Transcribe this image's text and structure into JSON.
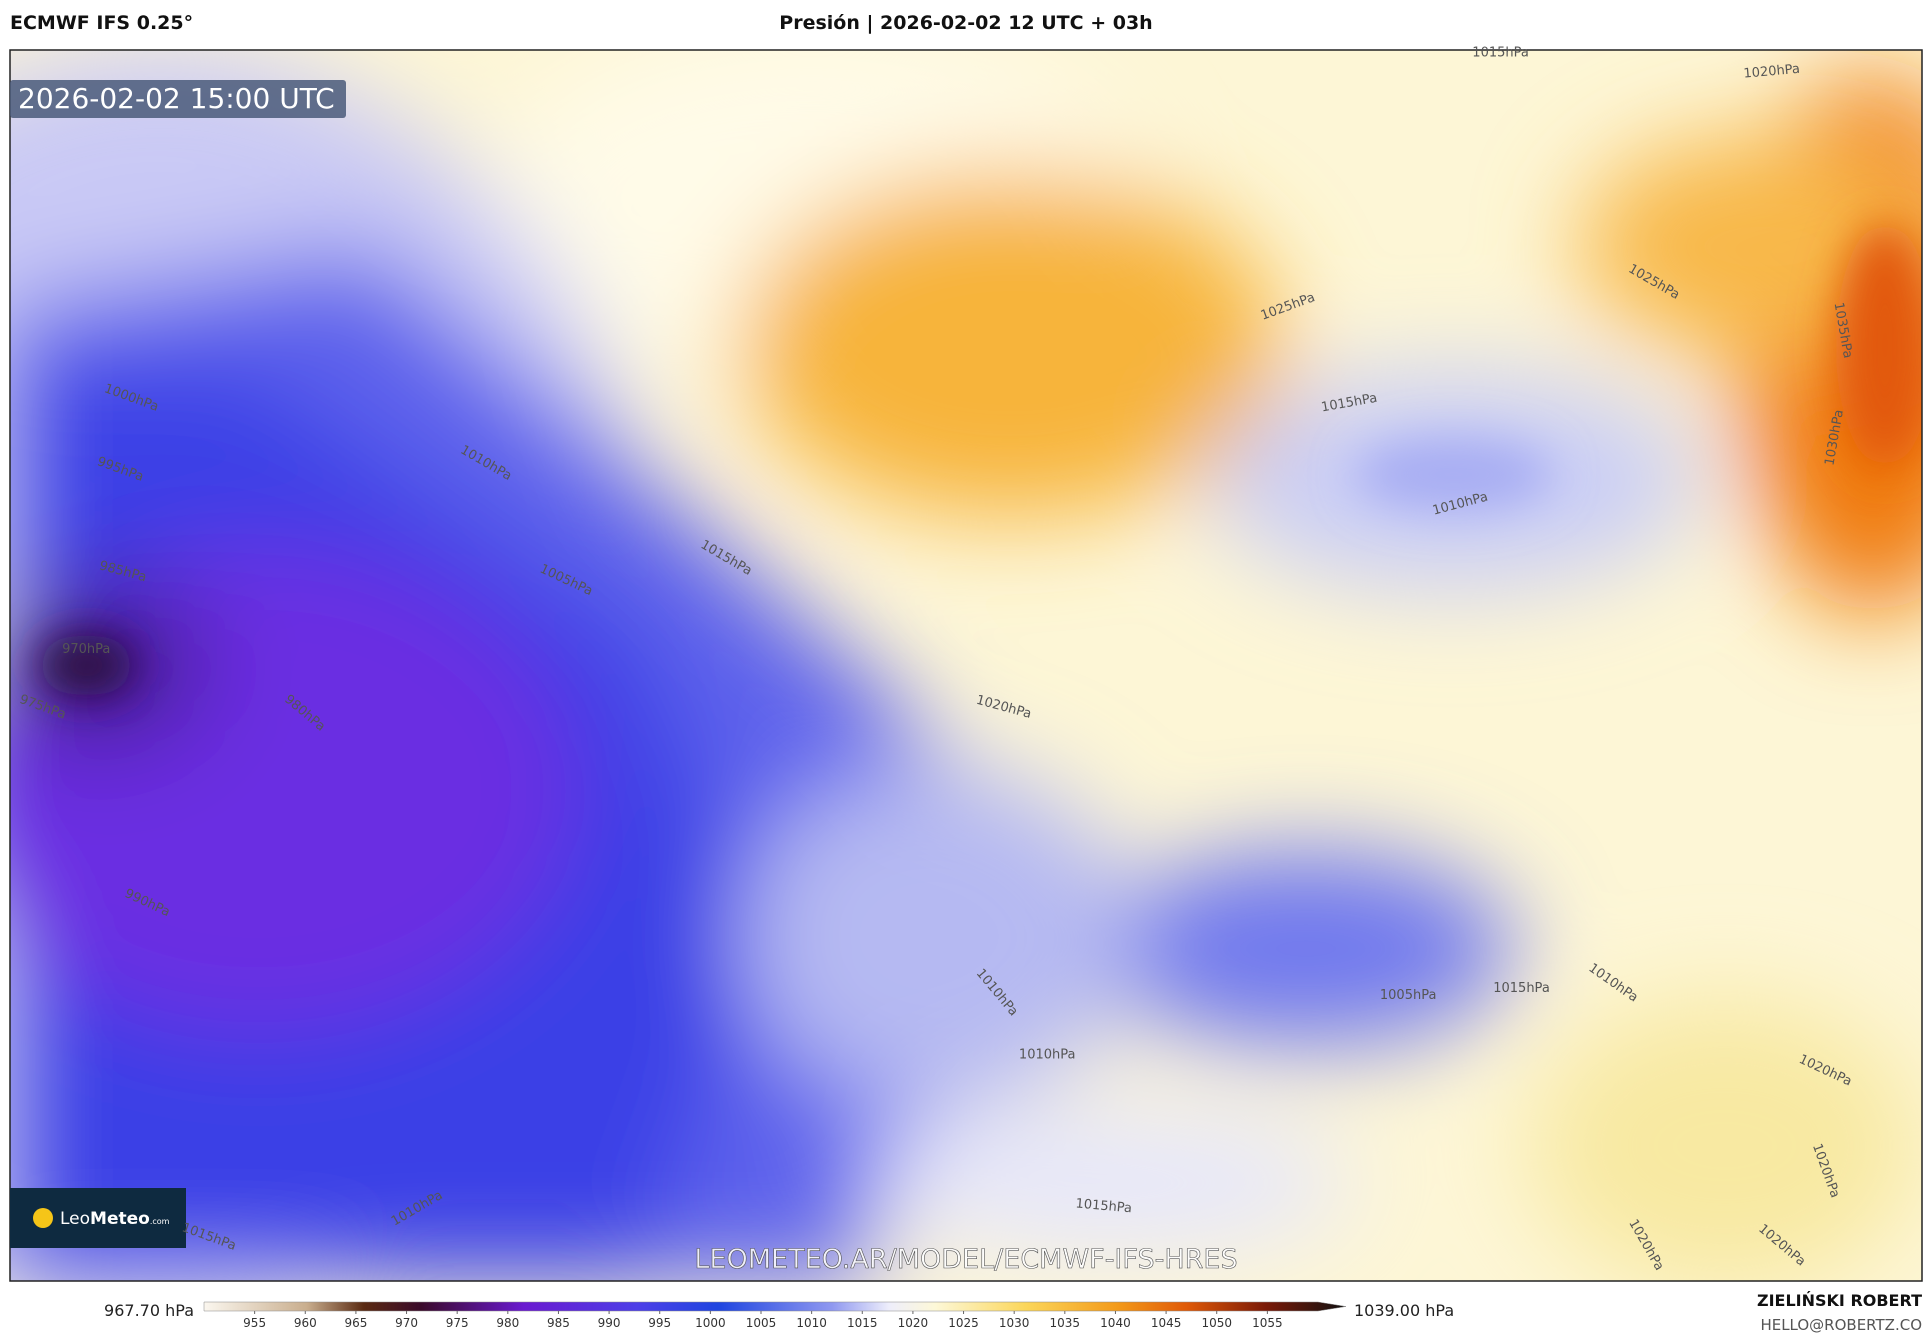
{
  "header": {
    "model": "ECMWF IFS 0.25°",
    "title": "Presión | 2026-02-02 12 UTC + 03h"
  },
  "map": {
    "timestamp": "2026-02-02 15:00 UTC",
    "watermark": "LEOMETEO.AR/MODEL/ECMWF-IFS-HRES",
    "logo": {
      "name_a": "Leo",
      "name_b": "Meteo",
      "suffix": ".com"
    },
    "isobar_labels": [
      "1015hPa",
      "1020hPa",
      "1025hPa",
      "1025hPa",
      "1035hPa",
      "1015hPa",
      "1030hPa",
      "1000hPa",
      "995hPa",
      "1010hPa",
      "1010hPa",
      "985hPa",
      "1005hPa",
      "1015hPa",
      "970hPa",
      "975hPa",
      "980hPa",
      "1020hPa",
      "990hPa",
      "1010hPa",
      "1005hPa",
      "1015hPa",
      "1010hPa",
      "1010hPa",
      "1020hPa",
      "1020hPa",
      "1015hPa",
      "1015hPa",
      "1010hPa",
      "1020hPa",
      "1020hPa"
    ]
  },
  "colorbar": {
    "min_label": "967.70 hPa",
    "max_label": "1039.00 hPa",
    "lim": [
      950,
      1060
    ],
    "ticks": [
      955,
      960,
      965,
      970,
      975,
      980,
      985,
      990,
      995,
      1000,
      1005,
      1010,
      1015,
      1020,
      1025,
      1030,
      1035,
      1040,
      1045,
      1050,
      1055
    ]
  },
  "footer": {
    "author": "ZIELIŃSKI ROBERT",
    "contact": "HELLO@ROBERTZ.CO"
  }
}
